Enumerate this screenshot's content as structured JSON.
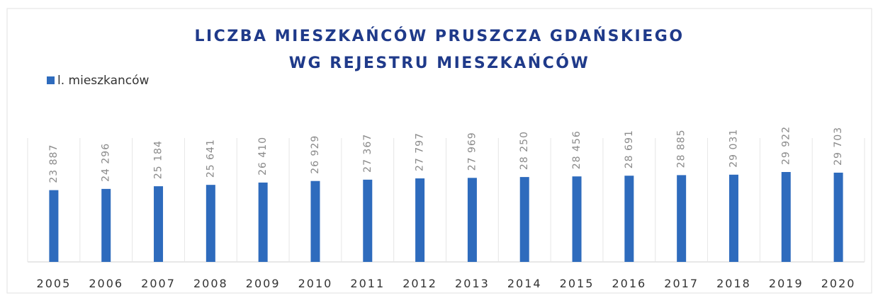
{
  "chart_data": {
    "type": "bar",
    "title": [
      "LICZBA MIESZKAŃCÓW PRUSZCZA GDAŃSKIEGO",
      "WG REJESTRU MIESZKAŃCÓW"
    ],
    "categories": [
      "2005",
      "2006",
      "2007",
      "2008",
      "2009",
      "2010",
      "2011",
      "2012",
      "2013",
      "2014",
      "2015",
      "2016",
      "2017",
      "2018",
      "2019",
      "2020"
    ],
    "series": [
      {
        "name": "l. mieszkanców",
        "color": "#2e6bbd",
        "values": [
          23887,
          24296,
          25184,
          25641,
          26410,
          26929,
          27367,
          27797,
          27969,
          28250,
          28456,
          28691,
          28885,
          29031,
          29922,
          29703
        ],
        "value_labels": [
          "23 887",
          "24 296",
          "25 184",
          "25 641",
          "26 410",
          "26 929",
          "27 367",
          "27 797",
          "27 969",
          "28 250",
          "28 456",
          "28 691",
          "28 885",
          "29 031",
          "29 922",
          "29 703"
        ]
      }
    ],
    "legend": "top-left",
    "grid": false
  }
}
